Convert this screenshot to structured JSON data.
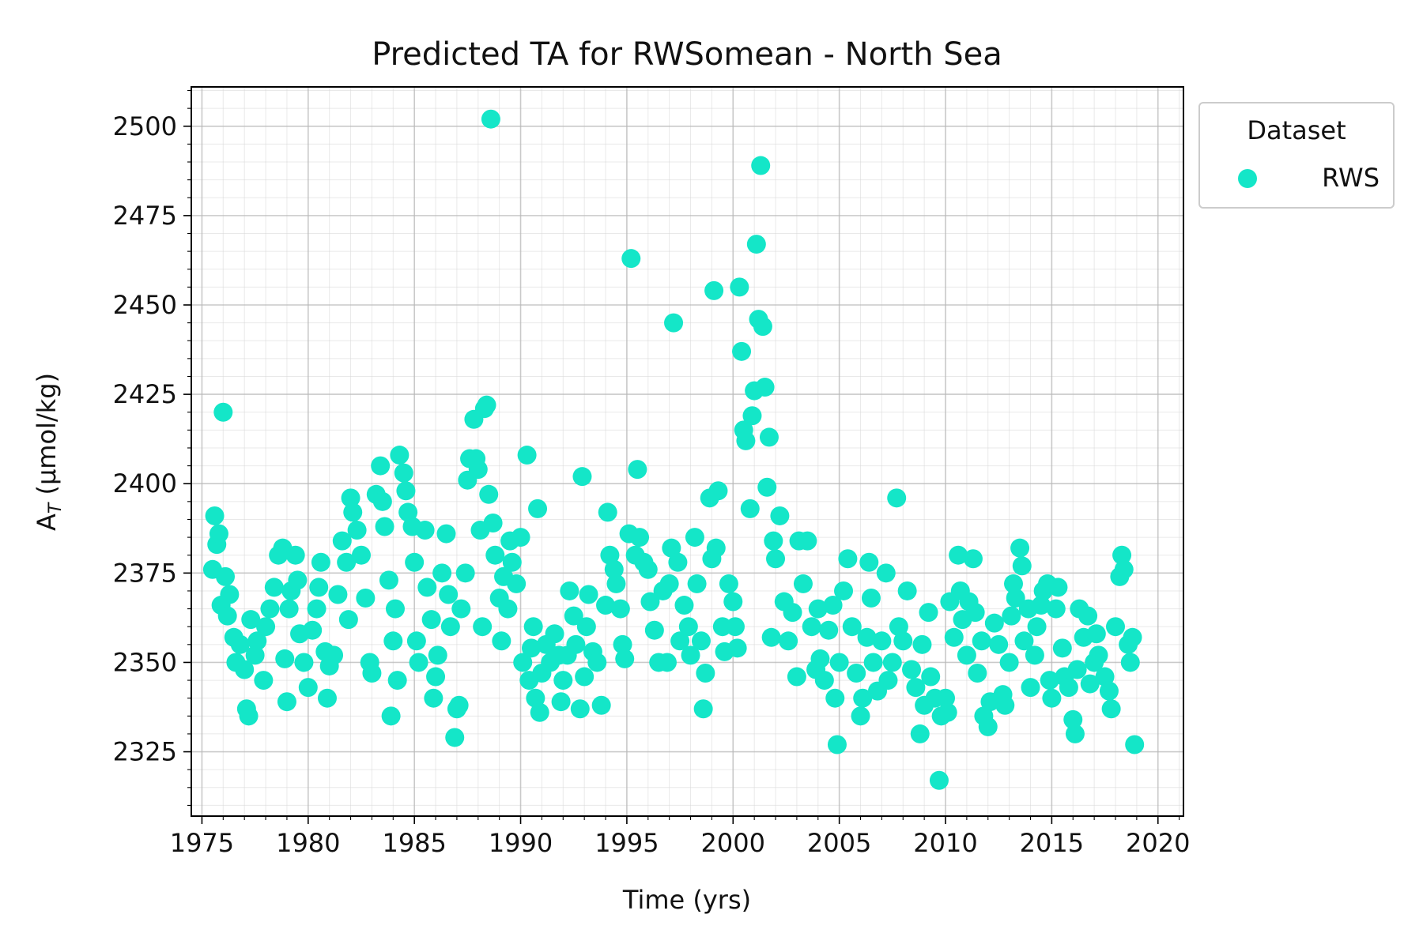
{
  "chart_data": {
    "type": "scatter",
    "title": "Predicted TA for RWSomean - North Sea",
    "xlabel": "Time (yrs)",
    "ylabel_main": "A",
    "ylabel_sub": "T",
    "ylabel_rest": " (µmol/kg)",
    "xlim": [
      1974.5,
      2021.2
    ],
    "ylim": [
      2307,
      2511
    ],
    "x_ticks": [
      1975,
      1980,
      1985,
      1990,
      1995,
      2000,
      2005,
      2010,
      2015,
      2020
    ],
    "y_ticks": [
      2325,
      2350,
      2375,
      2400,
      2425,
      2450,
      2475,
      2500
    ],
    "grid": true,
    "legend": {
      "title": "Dataset",
      "placement": "upper-left-outside"
    },
    "series": [
      {
        "name": "RWS",
        "color": "#14e6c8",
        "points": [
          [
            1975.5,
            2376
          ],
          [
            1975.6,
            2391
          ],
          [
            1975.7,
            2383
          ],
          [
            1975.8,
            2386
          ],
          [
            1975.9,
            2366
          ],
          [
            1976.0,
            2420
          ],
          [
            1976.1,
            2374
          ],
          [
            1976.2,
            2363
          ],
          [
            1976.3,
            2369
          ],
          [
            1976.5,
            2357
          ],
          [
            1976.6,
            2350
          ],
          [
            1976.8,
            2355
          ],
          [
            1977.0,
            2348
          ],
          [
            1977.1,
            2337
          ],
          [
            1977.2,
            2335
          ],
          [
            1977.3,
            2362
          ],
          [
            1977.5,
            2352
          ],
          [
            1977.6,
            2356
          ],
          [
            1977.9,
            2345
          ],
          [
            1978.0,
            2360
          ],
          [
            1978.2,
            2365
          ],
          [
            1978.4,
            2371
          ],
          [
            1978.6,
            2380
          ],
          [
            1978.8,
            2382
          ],
          [
            1978.9,
            2351
          ],
          [
            1979.0,
            2339
          ],
          [
            1979.1,
            2365
          ],
          [
            1979.2,
            2370
          ],
          [
            1979.4,
            2380
          ],
          [
            1979.5,
            2373
          ],
          [
            1979.6,
            2358
          ],
          [
            1979.8,
            2350
          ],
          [
            1980.0,
            2343
          ],
          [
            1980.2,
            2359
          ],
          [
            1980.4,
            2365
          ],
          [
            1980.5,
            2371
          ],
          [
            1980.6,
            2378
          ],
          [
            1980.8,
            2353
          ],
          [
            1980.9,
            2340
          ],
          [
            1981.0,
            2349
          ],
          [
            1981.2,
            2352
          ],
          [
            1981.4,
            2369
          ],
          [
            1981.6,
            2384
          ],
          [
            1981.8,
            2378
          ],
          [
            1981.9,
            2362
          ],
          [
            1982.0,
            2396
          ],
          [
            1982.1,
            2392
          ],
          [
            1982.3,
            2387
          ],
          [
            1982.5,
            2380
          ],
          [
            1982.7,
            2368
          ],
          [
            1982.9,
            2350
          ],
          [
            1983.0,
            2347
          ],
          [
            1983.2,
            2397
          ],
          [
            1983.4,
            2405
          ],
          [
            1983.5,
            2395
          ],
          [
            1983.6,
            2388
          ],
          [
            1983.8,
            2373
          ],
          [
            1983.9,
            2335
          ],
          [
            1984.0,
            2356
          ],
          [
            1984.1,
            2365
          ],
          [
            1984.2,
            2345
          ],
          [
            1984.3,
            2408
          ],
          [
            1984.5,
            2403
          ],
          [
            1984.6,
            2398
          ],
          [
            1984.7,
            2392
          ],
          [
            1984.9,
            2388
          ],
          [
            1985.0,
            2378
          ],
          [
            1985.1,
            2356
          ],
          [
            1985.2,
            2350
          ],
          [
            1985.5,
            2387
          ],
          [
            1985.6,
            2371
          ],
          [
            1985.8,
            2362
          ],
          [
            1985.9,
            2340
          ],
          [
            1986.0,
            2346
          ],
          [
            1986.1,
            2352
          ],
          [
            1986.3,
            2375
          ],
          [
            1986.5,
            2386
          ],
          [
            1986.6,
            2369
          ],
          [
            1986.7,
            2360
          ],
          [
            1986.9,
            2329
          ],
          [
            1987.0,
            2337
          ],
          [
            1987.1,
            2338
          ],
          [
            1987.2,
            2365
          ],
          [
            1987.4,
            2375
          ],
          [
            1987.5,
            2401
          ],
          [
            1987.6,
            2407
          ],
          [
            1987.8,
            2418
          ],
          [
            1987.9,
            2407
          ],
          [
            1988.0,
            2404
          ],
          [
            1988.1,
            2387
          ],
          [
            1988.2,
            2360
          ],
          [
            1988.3,
            2421
          ],
          [
            1988.4,
            2422
          ],
          [
            1988.5,
            2397
          ],
          [
            1988.6,
            2502
          ],
          [
            1988.7,
            2389
          ],
          [
            1988.8,
            2380
          ],
          [
            1989.0,
            2368
          ],
          [
            1989.1,
            2356
          ],
          [
            1989.2,
            2374
          ],
          [
            1989.4,
            2365
          ],
          [
            1989.5,
            2384
          ],
          [
            1989.6,
            2378
          ],
          [
            1989.8,
            2372
          ],
          [
            1990.0,
            2385
          ],
          [
            1990.1,
            2350
          ],
          [
            1990.3,
            2408
          ],
          [
            1990.4,
            2345
          ],
          [
            1990.5,
            2354
          ],
          [
            1990.6,
            2360
          ],
          [
            1990.7,
            2340
          ],
          [
            1990.8,
            2393
          ],
          [
            1990.9,
            2336
          ],
          [
            1991.0,
            2347
          ],
          [
            1991.2,
            2355
          ],
          [
            1991.4,
            2350
          ],
          [
            1991.6,
            2358
          ],
          [
            1991.8,
            2352
          ],
          [
            1991.9,
            2339
          ],
          [
            1992.0,
            2345
          ],
          [
            1992.2,
            2352
          ],
          [
            1992.3,
            2370
          ],
          [
            1992.5,
            2363
          ],
          [
            1992.6,
            2355
          ],
          [
            1992.8,
            2337
          ],
          [
            1992.9,
            2402
          ],
          [
            1993.0,
            2346
          ],
          [
            1993.1,
            2360
          ],
          [
            1993.2,
            2369
          ],
          [
            1993.4,
            2353
          ],
          [
            1993.6,
            2350
          ],
          [
            1993.8,
            2338
          ],
          [
            1994.0,
            2366
          ],
          [
            1994.1,
            2392
          ],
          [
            1994.2,
            2380
          ],
          [
            1994.4,
            2376
          ],
          [
            1994.5,
            2372
          ],
          [
            1994.7,
            2365
          ],
          [
            1994.8,
            2355
          ],
          [
            1994.9,
            2351
          ],
          [
            1995.1,
            2386
          ],
          [
            1995.2,
            2463
          ],
          [
            1995.4,
            2380
          ],
          [
            1995.5,
            2404
          ],
          [
            1995.6,
            2385
          ],
          [
            1995.8,
            2378
          ],
          [
            1996.0,
            2376
          ],
          [
            1996.1,
            2367
          ],
          [
            1996.3,
            2359
          ],
          [
            1996.5,
            2350
          ],
          [
            1996.7,
            2370
          ],
          [
            1996.9,
            2350
          ],
          [
            1997.0,
            2372
          ],
          [
            1997.1,
            2382
          ],
          [
            1997.2,
            2445
          ],
          [
            1997.4,
            2378
          ],
          [
            1997.5,
            2356
          ],
          [
            1997.7,
            2366
          ],
          [
            1997.9,
            2360
          ],
          [
            1998.0,
            2352
          ],
          [
            1998.2,
            2385
          ],
          [
            1998.3,
            2372
          ],
          [
            1998.5,
            2356
          ],
          [
            1998.6,
            2337
          ],
          [
            1998.7,
            2347
          ],
          [
            1998.9,
            2396
          ],
          [
            1999.0,
            2379
          ],
          [
            1999.1,
            2454
          ],
          [
            1999.2,
            2382
          ],
          [
            1999.3,
            2398
          ],
          [
            1999.5,
            2360
          ],
          [
            1999.6,
            2353
          ],
          [
            1999.8,
            2372
          ],
          [
            2000.0,
            2367
          ],
          [
            2000.1,
            2360
          ],
          [
            2000.2,
            2354
          ],
          [
            2000.3,
            2455
          ],
          [
            2000.4,
            2437
          ],
          [
            2000.5,
            2415
          ],
          [
            2000.6,
            2412
          ],
          [
            2000.8,
            2393
          ],
          [
            2000.9,
            2419
          ],
          [
            2001.0,
            2426
          ],
          [
            2001.1,
            2467
          ],
          [
            2001.2,
            2446
          ],
          [
            2001.3,
            2489
          ],
          [
            2001.4,
            2444
          ],
          [
            2001.5,
            2427
          ],
          [
            2001.6,
            2399
          ],
          [
            2001.7,
            2413
          ],
          [
            2001.8,
            2357
          ],
          [
            2001.9,
            2384
          ],
          [
            2002.0,
            2379
          ],
          [
            2002.2,
            2391
          ],
          [
            2002.4,
            2367
          ],
          [
            2002.6,
            2356
          ],
          [
            2002.8,
            2364
          ],
          [
            2003.0,
            2346
          ],
          [
            2003.1,
            2384
          ],
          [
            2003.3,
            2372
          ],
          [
            2003.5,
            2384
          ],
          [
            2003.7,
            2360
          ],
          [
            2003.9,
            2348
          ],
          [
            2004.0,
            2365
          ],
          [
            2004.1,
            2351
          ],
          [
            2004.3,
            2345
          ],
          [
            2004.5,
            2359
          ],
          [
            2004.7,
            2366
          ],
          [
            2004.8,
            2340
          ],
          [
            2004.9,
            2327
          ],
          [
            2005.0,
            2350
          ],
          [
            2005.2,
            2370
          ],
          [
            2005.4,
            2379
          ],
          [
            2005.6,
            2360
          ],
          [
            2005.8,
            2347
          ],
          [
            2006.0,
            2335
          ],
          [
            2006.1,
            2340
          ],
          [
            2006.3,
            2357
          ],
          [
            2006.4,
            2378
          ],
          [
            2006.5,
            2368
          ],
          [
            2006.6,
            2350
          ],
          [
            2006.8,
            2342
          ],
          [
            2007.0,
            2356
          ],
          [
            2007.2,
            2375
          ],
          [
            2007.3,
            2345
          ],
          [
            2007.5,
            2350
          ],
          [
            2007.7,
            2396
          ],
          [
            2007.8,
            2360
          ],
          [
            2008.0,
            2356
          ],
          [
            2008.2,
            2370
          ],
          [
            2008.4,
            2348
          ],
          [
            2008.6,
            2343
          ],
          [
            2008.8,
            2330
          ],
          [
            2008.9,
            2355
          ],
          [
            2009.0,
            2338
          ],
          [
            2009.2,
            2364
          ],
          [
            2009.3,
            2346
          ],
          [
            2009.5,
            2340
          ],
          [
            2009.7,
            2317
          ],
          [
            2009.8,
            2335
          ],
          [
            2010.0,
            2340
          ],
          [
            2010.1,
            2336
          ],
          [
            2010.2,
            2367
          ],
          [
            2010.4,
            2357
          ],
          [
            2010.6,
            2380
          ],
          [
            2010.7,
            2370
          ],
          [
            2010.8,
            2362
          ],
          [
            2011.0,
            2352
          ],
          [
            2011.1,
            2367
          ],
          [
            2011.3,
            2379
          ],
          [
            2011.4,
            2364
          ],
          [
            2011.5,
            2347
          ],
          [
            2011.7,
            2356
          ],
          [
            2011.8,
            2335
          ],
          [
            2012.0,
            2332
          ],
          [
            2012.1,
            2339
          ],
          [
            2012.3,
            2361
          ],
          [
            2012.5,
            2355
          ],
          [
            2012.7,
            2341
          ],
          [
            2012.8,
            2338
          ],
          [
            2013.0,
            2350
          ],
          [
            2013.1,
            2363
          ],
          [
            2013.2,
            2372
          ],
          [
            2013.3,
            2368
          ],
          [
            2013.5,
            2382
          ],
          [
            2013.6,
            2377
          ],
          [
            2013.7,
            2356
          ],
          [
            2013.9,
            2365
          ],
          [
            2014.0,
            2343
          ],
          [
            2014.2,
            2352
          ],
          [
            2014.3,
            2360
          ],
          [
            2014.5,
            2366
          ],
          [
            2014.6,
            2370
          ],
          [
            2014.8,
            2372
          ],
          [
            2014.9,
            2345
          ],
          [
            2015.0,
            2340
          ],
          [
            2015.2,
            2365
          ],
          [
            2015.3,
            2371
          ],
          [
            2015.5,
            2354
          ],
          [
            2015.6,
            2346
          ],
          [
            2015.8,
            2343
          ],
          [
            2016.0,
            2334
          ],
          [
            2016.1,
            2330
          ],
          [
            2016.2,
            2348
          ],
          [
            2016.3,
            2365
          ],
          [
            2016.5,
            2357
          ],
          [
            2016.7,
            2363
          ],
          [
            2016.8,
            2344
          ],
          [
            2017.0,
            2350
          ],
          [
            2017.1,
            2358
          ],
          [
            2017.2,
            2352
          ],
          [
            2017.5,
            2346
          ],
          [
            2017.7,
            2342
          ],
          [
            2017.8,
            2337
          ],
          [
            2018.0,
            2360
          ],
          [
            2018.2,
            2374
          ],
          [
            2018.3,
            2380
          ],
          [
            2018.4,
            2376
          ],
          [
            2018.6,
            2355
          ],
          [
            2018.7,
            2350
          ],
          [
            2018.8,
            2357
          ],
          [
            2018.9,
            2327
          ]
        ]
      }
    ]
  }
}
